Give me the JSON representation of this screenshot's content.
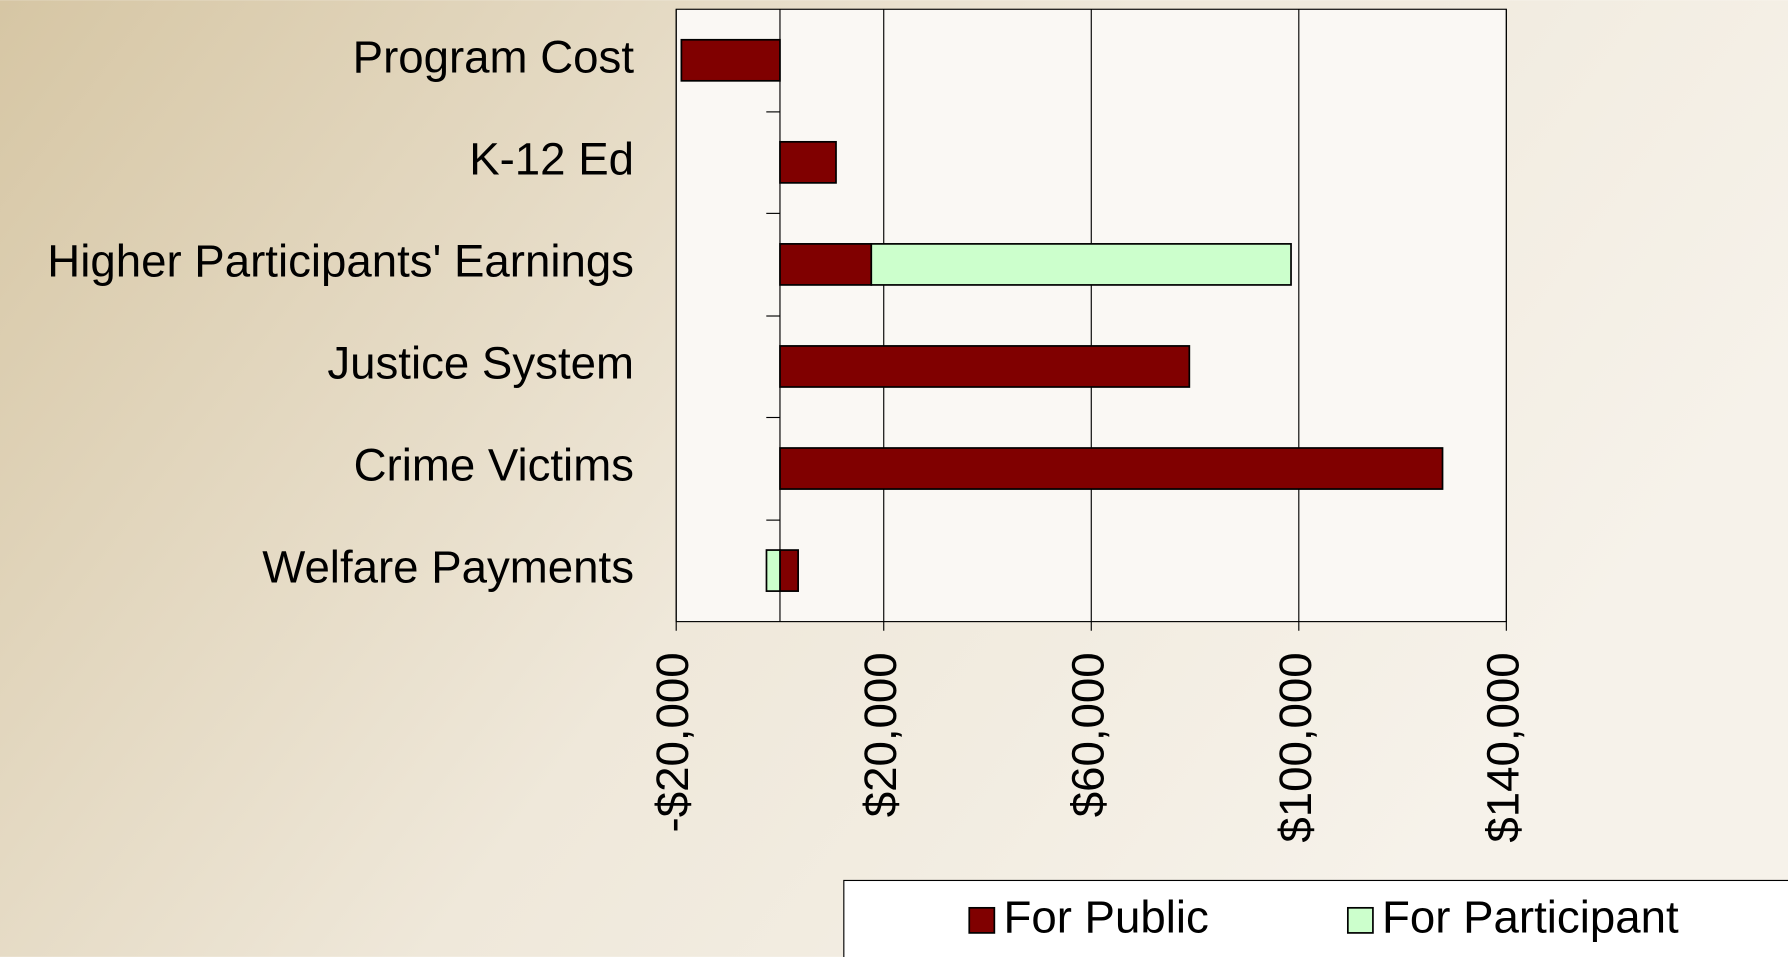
{
  "chart_data": {
    "type": "bar",
    "orientation": "horizontal",
    "stacked": true,
    "categories": [
      "Program Cost",
      "K-12 Ed",
      "Higher Participants'  Earnings",
      "Justice System",
      "Crime Victims",
      "Welfare Payments"
    ],
    "series": [
      {
        "name": "For Public",
        "color": "#800000",
        "values": [
          -19000,
          10800,
          17600,
          78900,
          127700,
          3500
        ]
      },
      {
        "name": "For Participant",
        "color": "#ccffcc",
        "values": [
          null,
          null,
          80900,
          null,
          null,
          -2600
        ]
      }
    ],
    "xlim": [
      -20000,
      140000
    ],
    "xticks": [
      {
        "value": -20000,
        "label": "-$20,000"
      },
      {
        "value": 20000,
        "label": "$20,000"
      },
      {
        "value": 60000,
        "label": "$60,000"
      },
      {
        "value": 100000,
        "label": "$100,000"
      },
      {
        "value": 140000,
        "label": "$140,000"
      }
    ],
    "grid": true
  }
}
